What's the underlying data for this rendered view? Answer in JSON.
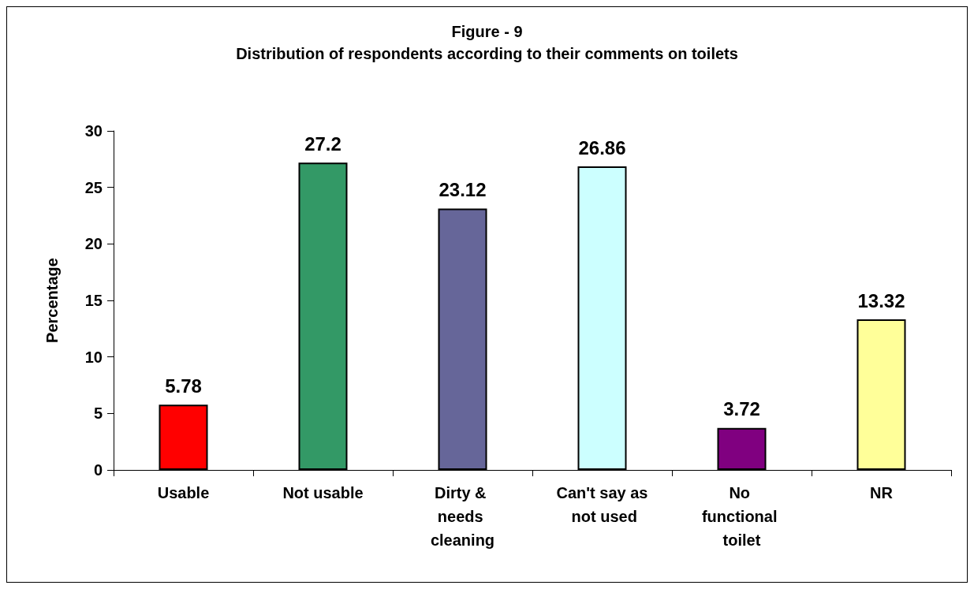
{
  "chart_data": {
    "type": "bar",
    "title": "Figure - 9",
    "subtitle": "Distribution of respondents according to their comments on toilets",
    "ylabel": "Percentage",
    "categories": [
      "Usable",
      "Not usable",
      "Dirty & needs cleaning",
      "Can't say as not used",
      "No functional toilet",
      "NR"
    ],
    "values": [
      5.78,
      27.2,
      23.12,
      26.86,
      3.72,
      13.32
    ],
    "colors": [
      "#ff0000",
      "#339966",
      "#666699",
      "#ccffff",
      "#800080",
      "#ffff99"
    ],
    "ylim": [
      0,
      30
    ],
    "yticks": [
      0,
      5,
      10,
      15,
      20,
      25,
      30
    ],
    "grid": false,
    "data_labels": true
  }
}
